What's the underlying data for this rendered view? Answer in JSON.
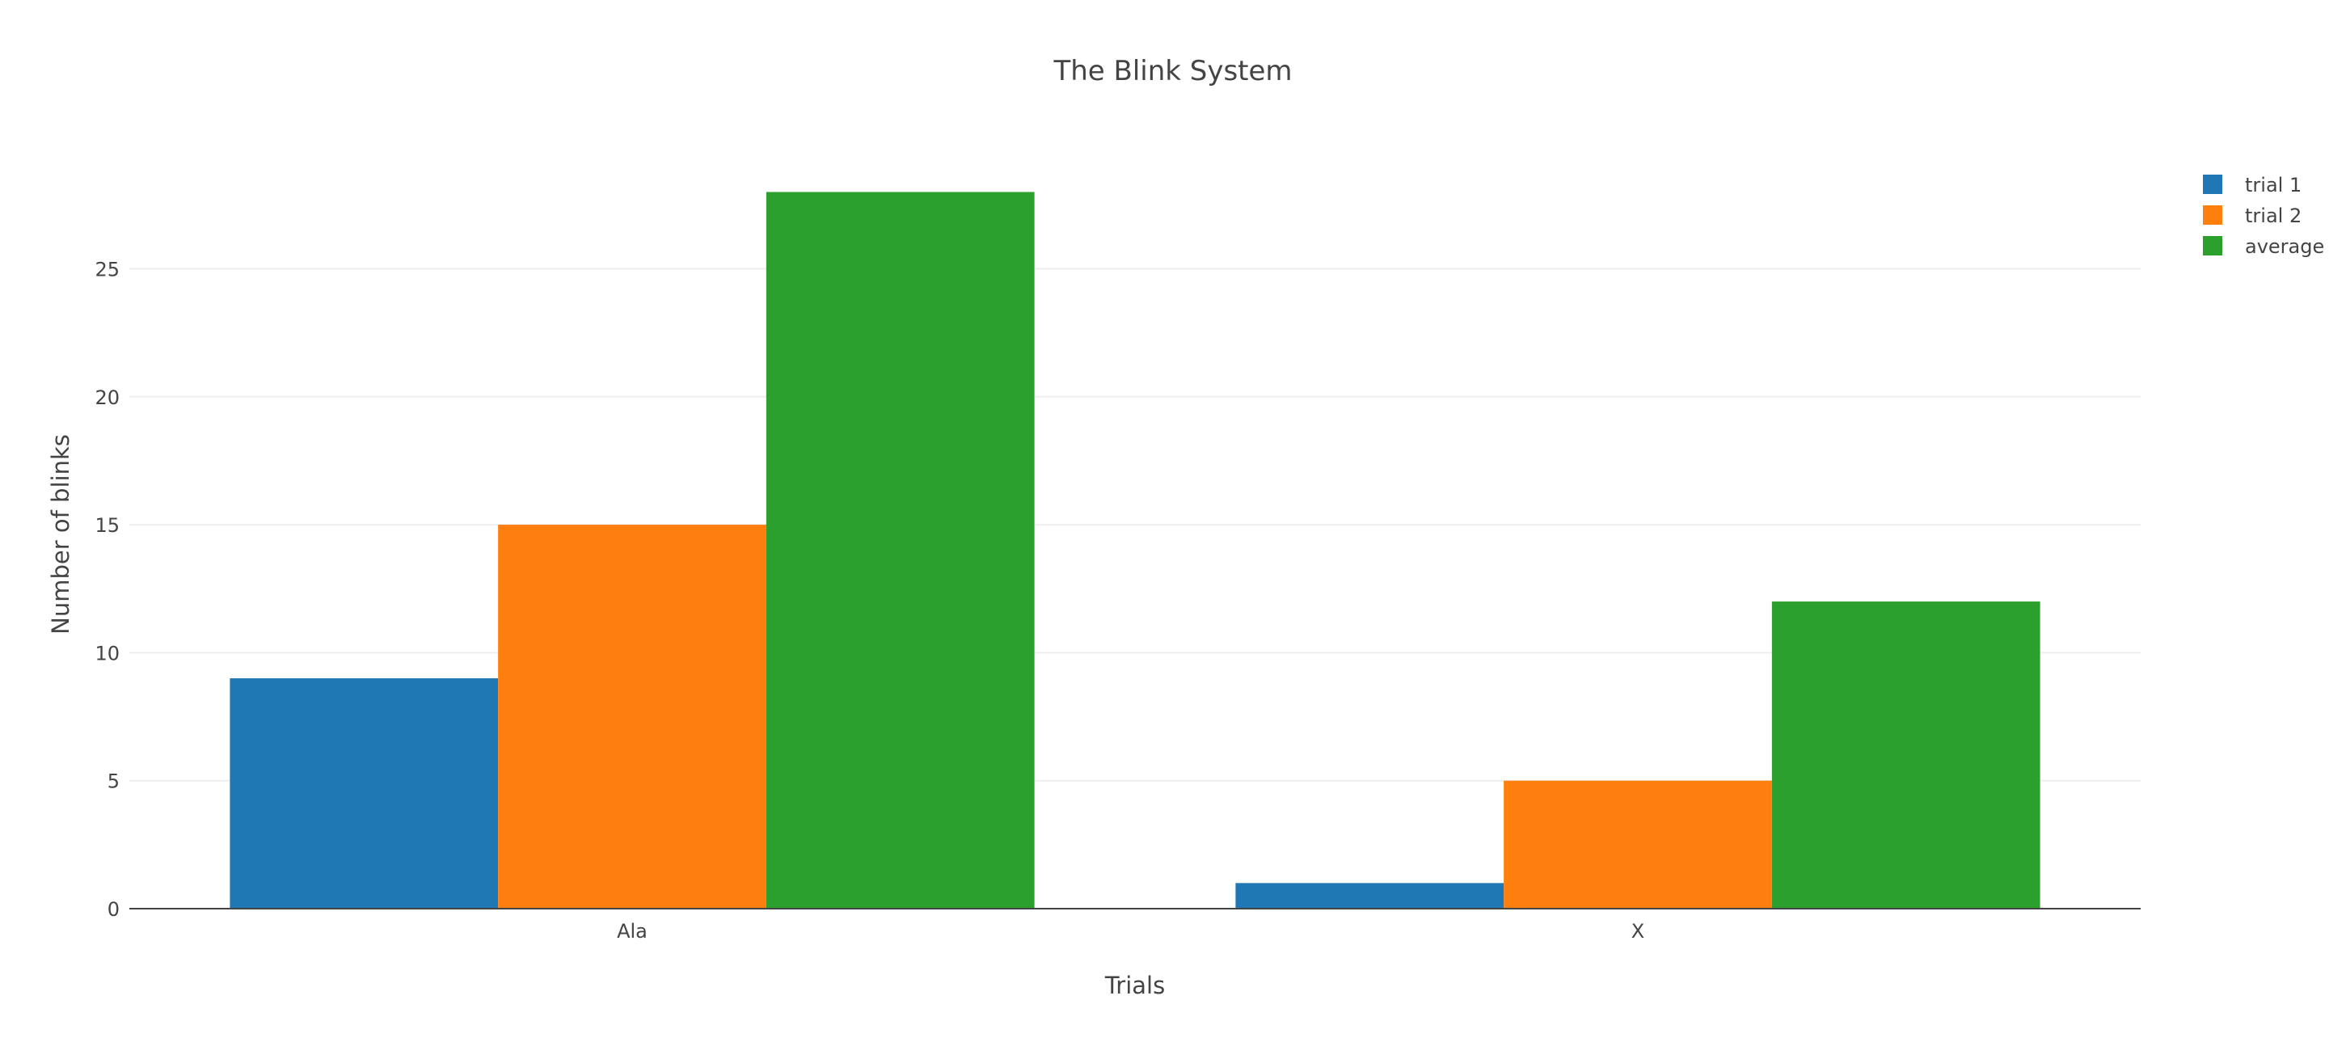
{
  "chart_data": {
    "type": "bar",
    "title": "The Blink System",
    "xlabel": "Trials",
    "ylabel": "Number of blinks",
    "categories": [
      "Ala",
      "X"
    ],
    "series": [
      {
        "name": "trial 1",
        "color": "#1f77b4",
        "values": [
          9,
          1
        ]
      },
      {
        "name": "trial 2",
        "color": "#ff7f0e",
        "values": [
          15,
          5
        ]
      },
      {
        "name": "average",
        "color": "#2ca02c",
        "values": [
          28,
          12
        ]
      }
    ],
    "yticks": [
      0,
      5,
      10,
      15,
      20,
      25
    ],
    "ylim": [
      0,
      29.5
    ],
    "grid": true,
    "legend_position": "top-right"
  }
}
